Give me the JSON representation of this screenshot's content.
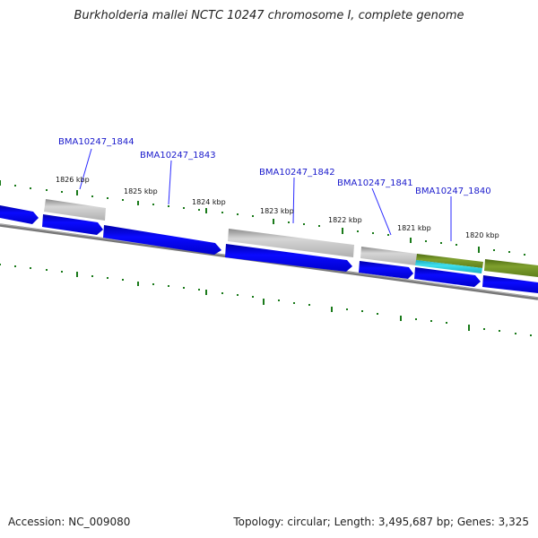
{
  "title": "Burkholderia mallei NCTC 10247 chromosome I, complete genome",
  "footer": {
    "accession": "Accession: NC_009080",
    "summary": "Topology: circular; Length: 3,495,687 bp; Genes: 3,325"
  },
  "colors": {
    "background": "#ffffff",
    "backbone": "#808080",
    "cds_forward": "#0000ee",
    "pseudo_gene": "#b3b3b3",
    "feature_olive": "#6b8e23",
    "feature_cyan": "#22c5d6",
    "tick_marks": "#1a7a1a",
    "gene_label": "#1a1acc"
  },
  "ticks": [
    "1826 kbp",
    "1825 kbp",
    "1824 kbp",
    "1823 kbp",
    "1822 kbp",
    "1821 kbp",
    "1820 kbp"
  ],
  "gene_labels": [
    "BMA10247_1844",
    "BMA10247_1843",
    "BMA10247_1842",
    "BMA10247_1841",
    "BMA10247_1840"
  ]
}
